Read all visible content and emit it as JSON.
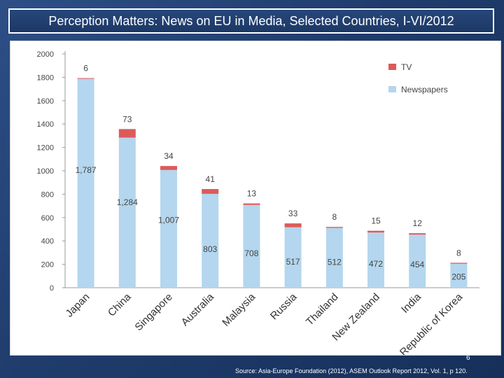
{
  "page": {
    "title": "Perception Matters: News on EU in Media, Selected Countries, I-VI/2012",
    "slide_number": "6",
    "source": "Source: Asia-Europe Foundation (2012), ASEM Outlook Report 2012, Vol. 1, p 120."
  },
  "chart_data": {
    "type": "bar",
    "stacked": true,
    "title": "",
    "xlabel": "",
    "ylabel": "",
    "ylim": [
      0,
      2000
    ],
    "yticks": [
      0,
      200,
      400,
      600,
      800,
      1000,
      1200,
      1400,
      1600,
      1800,
      2000
    ],
    "grid": false,
    "legend_position": "top-right",
    "categories": [
      "Japan",
      "China",
      "Singapore",
      "Australia",
      "Malaysia",
      "Russia",
      "Thailand",
      "New Zealand",
      "India",
      "Republic of Korea"
    ],
    "series": [
      {
        "name": "Newspapers",
        "color": "#b4d6ee",
        "values": [
          1787,
          1284,
          1007,
          803,
          708,
          517,
          512,
          472,
          454,
          205
        ],
        "labels": [
          "1,787",
          "1,284",
          "1,007",
          "803",
          "708",
          "517",
          "512",
          "472",
          "454",
          "205"
        ]
      },
      {
        "name": "TV",
        "color": "#dc5a5a",
        "values": [
          6,
          73,
          34,
          41,
          13,
          33,
          8,
          15,
          12,
          8
        ],
        "labels": [
          "6",
          "73",
          "34",
          "41",
          "13",
          "33",
          "8",
          "15",
          "12",
          "8"
        ]
      }
    ]
  }
}
